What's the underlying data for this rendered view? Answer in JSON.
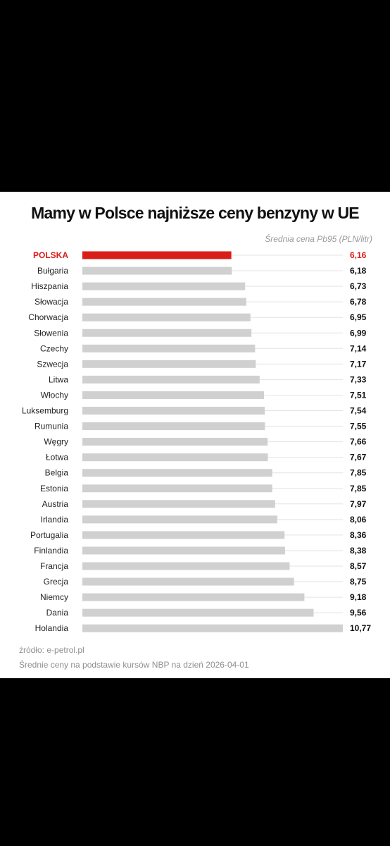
{
  "chart_data": {
    "type": "bar",
    "orientation": "horizontal",
    "title": "Mamy w Polsce najniższe ceny benzyny w UE",
    "subtitle": "Średnia cena Pb95 (PLN/litr)",
    "categories": [
      "POLSKA",
      "Bułgaria",
      "Hiszpania",
      "Słowacja",
      "Chorwacja",
      "Słowenia",
      "Czechy",
      "Szwecja",
      "Litwa",
      "Włochy",
      "Luksemburg",
      "Rumunia",
      "Węgry",
      "Łotwa",
      "Belgia",
      "Estonia",
      "Austria",
      "Irlandia",
      "Portugalia",
      "Finlandia",
      "Francja",
      "Grecja",
      "Niemcy",
      "Dania",
      "Holandia"
    ],
    "values": [
      6.16,
      6.18,
      6.73,
      6.78,
      6.95,
      6.99,
      7.14,
      7.17,
      7.33,
      7.51,
      7.54,
      7.55,
      7.66,
      7.67,
      7.85,
      7.85,
      7.97,
      8.06,
      8.36,
      8.38,
      8.57,
      8.75,
      9.18,
      9.56,
      10.77
    ],
    "value_labels": [
      "6,16",
      "6,18",
      "6,73",
      "6,78",
      "6,95",
      "6,99",
      "7,14",
      "7,17",
      "7,33",
      "7,51",
      "7,54",
      "7,55",
      "7,66",
      "7,67",
      "7,85",
      "7,85",
      "7,97",
      "8,06",
      "8,36",
      "8,38",
      "8,57",
      "8,75",
      "9,18",
      "9,56",
      "10,77"
    ],
    "highlight_category": "POLSKA",
    "highlight_color": "#d91e18",
    "bar_color": "#d0d0d0",
    "xlim": [
      0,
      10.77
    ],
    "grid": false,
    "legend": "none"
  },
  "footer": {
    "source": "źródło: e-petrol.pl",
    "note": "Średnie ceny na podstawie kursów NBP na dzień 2026-04-01"
  }
}
